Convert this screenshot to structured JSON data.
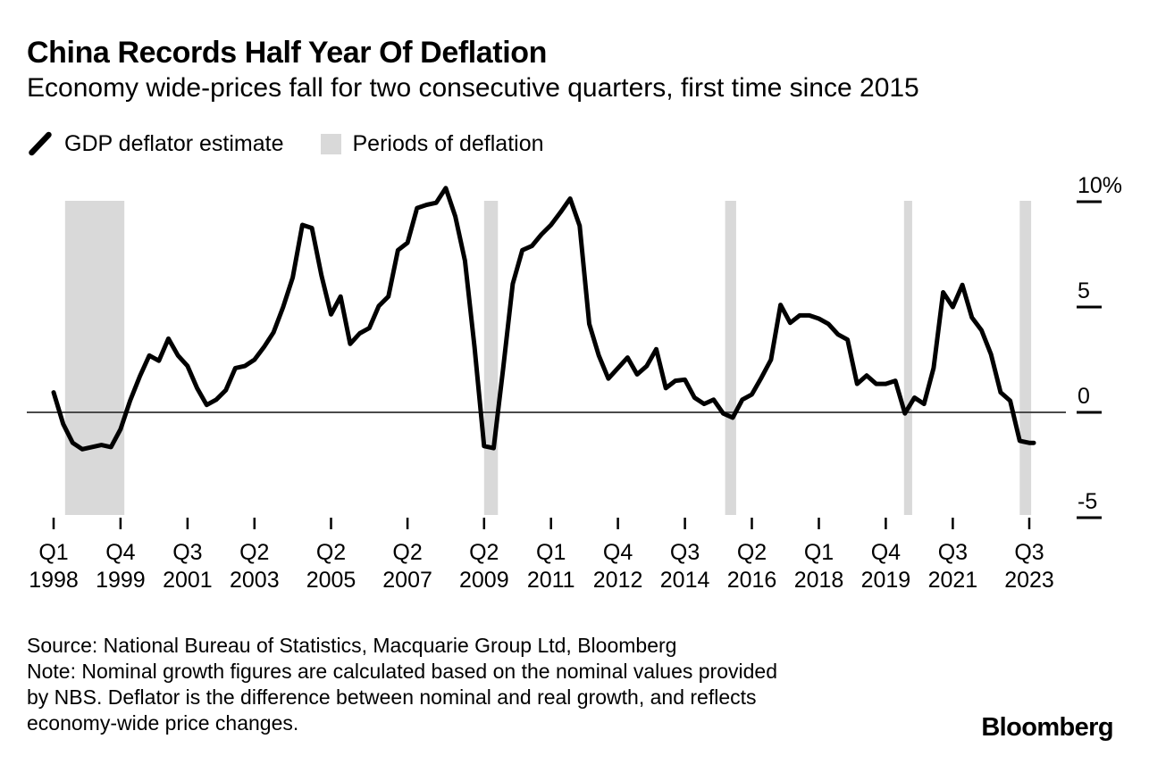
{
  "header": {
    "title": "China Records Half Year Of Deflation",
    "subtitle": "Economy wide-prices fall for two consecutive quarters, first time since 2015"
  },
  "legend": [
    {
      "icon": "line-swatch-icon",
      "label": "GDP deflator estimate"
    },
    {
      "icon": "band-swatch-icon",
      "label": "Periods of deflation"
    }
  ],
  "chart_data": {
    "type": "line",
    "series_name": "GDP deflator estimate",
    "unit": "%",
    "x_frequency": "quarterly",
    "x_start": "1998Q1",
    "x_end": "2023Q3",
    "values": [
      0.95,
      -0.55,
      -1.45,
      -1.75,
      -1.65,
      -1.55,
      -1.65,
      -0.8,
      0.55,
      1.7,
      2.7,
      2.45,
      3.5,
      2.7,
      2.2,
      1.15,
      0.35,
      0.6,
      1.05,
      2.1,
      2.2,
      2.5,
      3.1,
      3.8,
      5.0,
      6.4,
      8.9,
      8.75,
      6.5,
      4.65,
      5.5,
      3.25,
      3.75,
      4.0,
      5.05,
      5.5,
      7.7,
      8.05,
      9.7,
      9.85,
      9.95,
      10.65,
      9.3,
      7.2,
      3.1,
      -1.6,
      -1.7,
      2.1,
      6.1,
      7.7,
      7.9,
      8.45,
      8.9,
      9.5,
      10.15,
      8.85,
      4.2,
      2.7,
      1.6,
      2.1,
      2.6,
      1.8,
      2.2,
      3.0,
      1.15,
      1.5,
      1.55,
      0.7,
      0.4,
      0.6,
      -0.05,
      -0.25,
      0.6,
      0.85,
      1.65,
      2.5,
      5.1,
      4.25,
      4.6,
      4.6,
      4.45,
      4.2,
      3.7,
      3.45,
      1.35,
      1.75,
      1.35,
      1.35,
      1.5,
      -0.05,
      0.7,
      0.4,
      2.1,
      5.7,
      5.0,
      6.05,
      4.5,
      3.9,
      2.75,
      0.95,
      0.55,
      -1.35,
      -1.45
    ],
    "y_ticks": [
      {
        "value": 10,
        "label": "10%"
      },
      {
        "value": 5,
        "label": "5"
      },
      {
        "value": 0,
        "label": "0"
      },
      {
        "value": -5,
        "label": "-5"
      }
    ],
    "ylim": [
      -5,
      11
    ],
    "zero_line": true,
    "x_ticks": [
      {
        "q": 0,
        "quarter": "Q1",
        "year": "1998"
      },
      {
        "q": 7,
        "quarter": "Q4",
        "year": "1999"
      },
      {
        "q": 14,
        "quarter": "Q3",
        "year": "2001"
      },
      {
        "q": 21,
        "quarter": "Q2",
        "year": "2003"
      },
      {
        "q": 29,
        "quarter": "Q2",
        "year": "2005"
      },
      {
        "q": 37,
        "quarter": "Q2",
        "year": "2007"
      },
      {
        "q": 45,
        "quarter": "Q2",
        "year": "2009"
      },
      {
        "q": 52,
        "quarter": "Q1",
        "year": "2011"
      },
      {
        "q": 59,
        "quarter": "Q4",
        "year": "2012"
      },
      {
        "q": 66,
        "quarter": "Q3",
        "year": "2014"
      },
      {
        "q": 73,
        "quarter": "Q2",
        "year": "2016"
      },
      {
        "q": 80,
        "quarter": "Q1",
        "year": "2018"
      },
      {
        "q": 87,
        "quarter": "Q4",
        "year": "2019"
      },
      {
        "q": 94,
        "quarter": "Q3",
        "year": "2021"
      },
      {
        "q": 102,
        "quarter": "Q3",
        "year": "2023"
      }
    ],
    "deflation_bands": [
      {
        "label": "Q2 1998 - Q4 1999",
        "q_start": 1.2,
        "q_end": 7.4
      },
      {
        "label": "Q2 2009 - Q3 2009",
        "q_start": 45.0,
        "q_end": 46.45
      },
      {
        "label": "Q3 2015 - Q4 2015",
        "q_start": 70.2,
        "q_end": 71.35
      },
      {
        "label": "Q2 2020",
        "q_start": 88.9,
        "q_end": 89.75
      },
      {
        "label": "Q2 2023 - Q3 2023",
        "q_start": 101.0,
        "q_end": 102.2
      }
    ],
    "band_color": "#d9d9d9",
    "line_color": "#000000",
    "zero_line_color": "#4a4a4a"
  },
  "footer": {
    "source": "Source: National Bureau of Statistics, Macquarie Group Ltd, Bloomberg",
    "note_lines": [
      "Note: Nominal growth figures are calculated based on the nominal values provided",
      "by NBS. Deflator is the difference between nominal and real growth, and reflects",
      "economy-wide price changes."
    ],
    "brand": "Bloomberg"
  }
}
